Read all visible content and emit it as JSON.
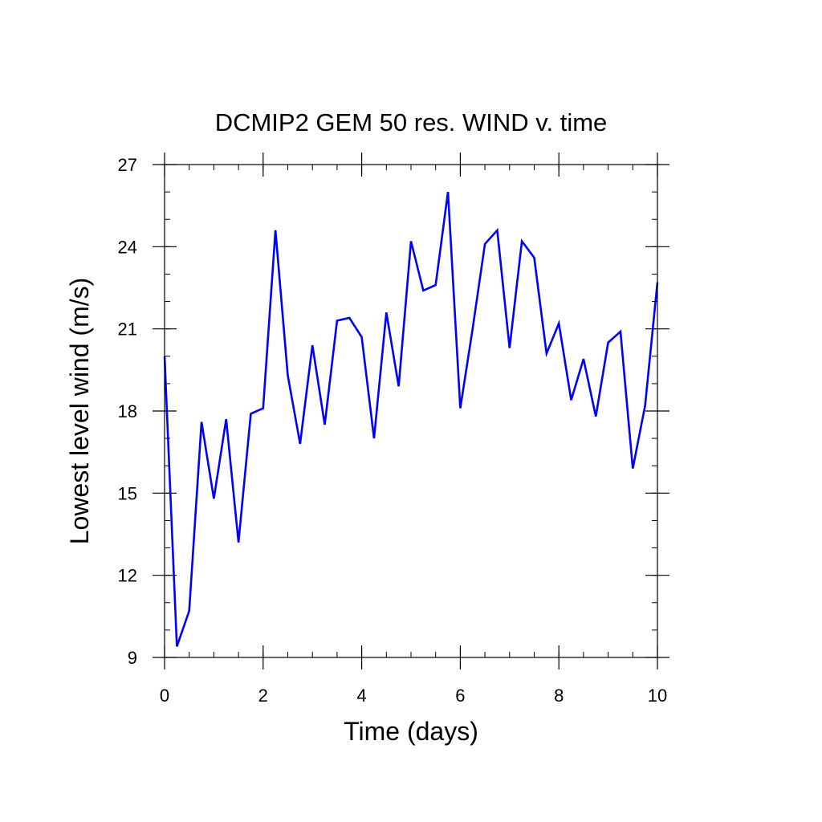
{
  "chart_data": {
    "type": "line",
    "title": "DCMIP2 GEM 50 res. WIND v. time",
    "xlabel": "Time (days)",
    "ylabel": "Lowest level wind (m/s)",
    "xlim": [
      0,
      10
    ],
    "ylim": [
      9,
      27
    ],
    "xticks": [
      0,
      2,
      4,
      6,
      8,
      10
    ],
    "yticks": [
      9,
      12,
      15,
      18,
      21,
      24,
      27
    ],
    "xtick_labels": [
      "0",
      "2",
      "4",
      "6",
      "8",
      "10"
    ],
    "ytick_labels": [
      "9",
      "12",
      "15",
      "18",
      "21",
      "24",
      "27"
    ],
    "grid": false,
    "series": [
      {
        "color": "#0000ff",
        "x": [
          0,
          0.25,
          0.5,
          0.75,
          1.0,
          1.25,
          1.5,
          1.75,
          2.0,
          2.25,
          2.5,
          2.75,
          3.0,
          3.25,
          3.5,
          3.75,
          4.0,
          4.25,
          4.5,
          4.75,
          5.0,
          5.25,
          5.5,
          5.75,
          6.0,
          6.25,
          6.5,
          6.75,
          7.0,
          7.25,
          7.5,
          7.75,
          8.0,
          8.25,
          8.5,
          8.75,
          9.0,
          9.25,
          9.5,
          9.75,
          10.0
        ],
        "y": [
          20.0,
          9.4,
          10.7,
          17.6,
          14.8,
          17.7,
          13.2,
          17.9,
          18.1,
          24.6,
          19.3,
          16.8,
          20.4,
          17.5,
          21.3,
          21.4,
          20.7,
          17.0,
          21.6,
          18.9,
          24.2,
          22.4,
          22.6,
          26.0,
          18.1,
          21.0,
          24.1,
          24.6,
          20.3,
          24.2,
          23.6,
          20.1,
          21.2,
          18.4,
          19.9,
          17.8,
          20.5,
          20.9,
          15.9,
          18.2,
          22.7
        ]
      }
    ]
  }
}
